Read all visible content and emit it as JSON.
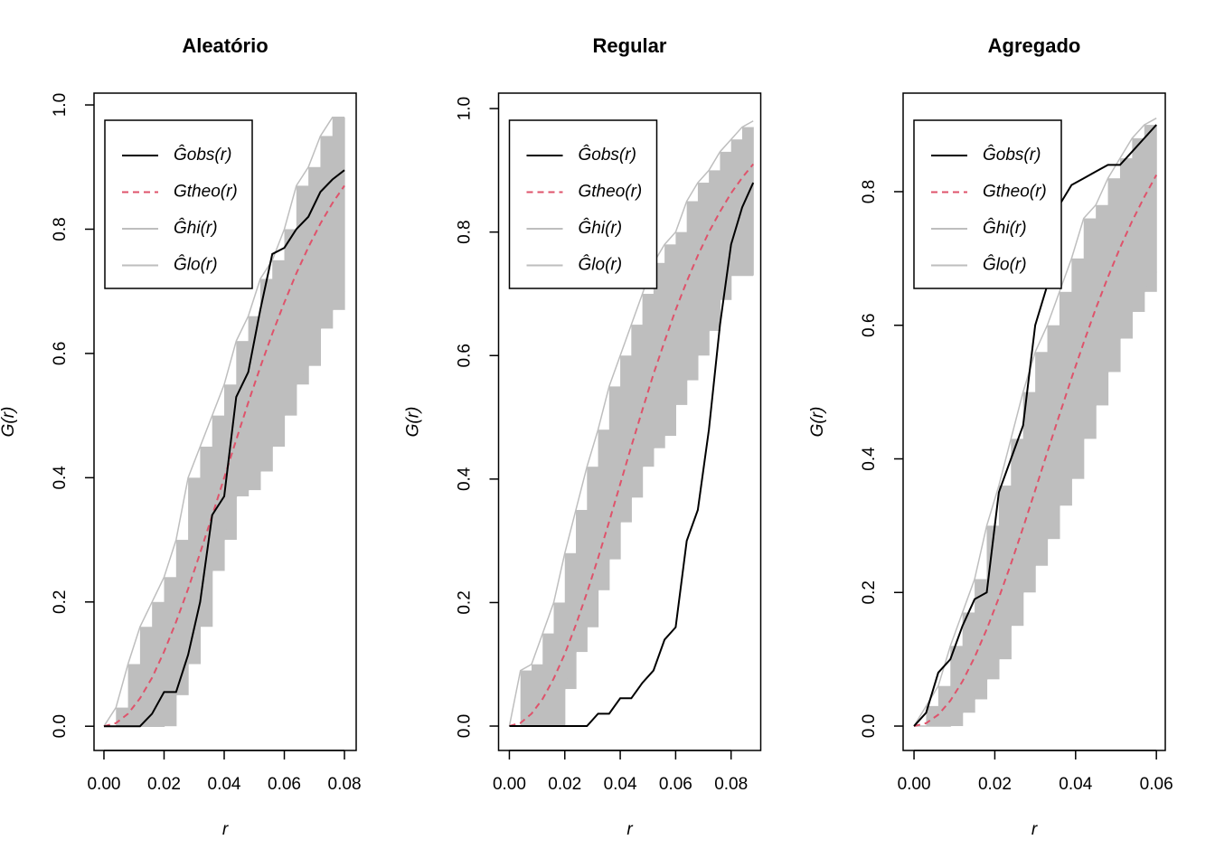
{
  "chart_data": [
    {
      "type": "line",
      "title": "Aleatório",
      "xlabel": "r",
      "ylabel": "G(r)",
      "x": [
        0,
        0.004,
        0.008,
        0.012,
        0.016,
        0.02,
        0.024,
        0.028,
        0.032,
        0.036,
        0.04,
        0.044,
        0.048,
        0.052,
        0.056,
        0.06,
        0.064,
        0.068,
        0.072,
        0.076,
        0.08
      ],
      "series": [
        {
          "name": "Ĝobs(r)",
          "color": "#000000",
          "style": "solid",
          "values": [
            0,
            0,
            0,
            0,
            0.02,
            0.055,
            0.055,
            0.115,
            0.2,
            0.34,
            0.37,
            0.53,
            0.57,
            0.67,
            0.76,
            0.77,
            0.8,
            0.82,
            0.86,
            0.88,
            0.895
          ]
        },
        {
          "name": "Gtheo(r)",
          "color": "#df536b",
          "style": "dashed",
          "values": [
            0,
            0.005,
            0.02,
            0.045,
            0.078,
            0.12,
            0.168,
            0.221,
            0.279,
            0.339,
            0.4,
            0.461,
            0.521,
            0.578,
            0.632,
            0.682,
            0.729,
            0.771,
            0.809,
            0.842,
            0.87
          ]
        },
        {
          "name": "Ĝhi(r)",
          "color": "#bebebe",
          "style": "solid",
          "values": [
            0,
            0.03,
            0.1,
            0.16,
            0.2,
            0.24,
            0.3,
            0.4,
            0.45,
            0.5,
            0.55,
            0.62,
            0.66,
            0.72,
            0.75,
            0.8,
            0.87,
            0.9,
            0.95,
            0.98,
            0.98
          ]
        },
        {
          "name": "Ĝlo(r)",
          "color": "#bebebe",
          "style": "solid",
          "values": [
            0,
            0,
            0,
            0,
            0,
            0,
            0.05,
            0.1,
            0.16,
            0.25,
            0.3,
            0.37,
            0.38,
            0.41,
            0.45,
            0.5,
            0.55,
            0.58,
            0.64,
            0.67,
            0.7
          ]
        }
      ],
      "xlim": [
        -0.0033,
        0.0839
      ],
      "ylim": [
        -0.039,
        1.019
      ],
      "xticks": [
        {
          "value": 0,
          "label": "0.00"
        },
        {
          "value": 0.02,
          "label": "0.02"
        },
        {
          "value": 0.04,
          "label": "0.04"
        },
        {
          "value": 0.06,
          "label": "0.06"
        },
        {
          "value": 0.08,
          "label": "0.08"
        }
      ],
      "yticks": [
        {
          "value": 0,
          "label": "0.0"
        },
        {
          "value": 0.2,
          "label": "0.2"
        },
        {
          "value": 0.4,
          "label": "0.4"
        },
        {
          "value": 0.6,
          "label": "0.6"
        },
        {
          "value": 0.8,
          "label": "0.8"
        },
        {
          "value": 1,
          "label": "1.0"
        }
      ],
      "legend": "top-left"
    },
    {
      "type": "line",
      "title": "Regular",
      "xlabel": "r",
      "ylabel": "G(r)",
      "x": [
        0,
        0.004,
        0.008,
        0.012,
        0.016,
        0.02,
        0.024,
        0.028,
        0.032,
        0.036,
        0.04,
        0.044,
        0.048,
        0.052,
        0.056,
        0.06,
        0.064,
        0.068,
        0.072,
        0.076,
        0.08,
        0.084,
        0.088
      ],
      "series": [
        {
          "name": "Ĝobs(r)",
          "color": "#000000",
          "style": "solid",
          "values": [
            0,
            0,
            0,
            0,
            0,
            0,
            0,
            0,
            0.02,
            0.02,
            0.045,
            0.045,
            0.07,
            0.09,
            0.14,
            0.16,
            0.3,
            0.35,
            0.48,
            0.65,
            0.78,
            0.84,
            0.88
          ]
        },
        {
          "name": "Gtheo(r)",
          "color": "#df536b",
          "style": "dashed",
          "values": [
            0,
            0.005,
            0.02,
            0.044,
            0.077,
            0.117,
            0.164,
            0.216,
            0.272,
            0.331,
            0.392,
            0.453,
            0.512,
            0.57,
            0.623,
            0.674,
            0.72,
            0.762,
            0.8,
            0.833,
            0.863,
            0.888,
            0.91
          ]
        },
        {
          "name": "Ĝhi(r)",
          "color": "#bebebe",
          "style": "solid",
          "values": [
            0,
            0.09,
            0.1,
            0.15,
            0.2,
            0.28,
            0.35,
            0.42,
            0.48,
            0.55,
            0.6,
            0.65,
            0.7,
            0.75,
            0.78,
            0.8,
            0.85,
            0.88,
            0.9,
            0.93,
            0.95,
            0.97,
            0.98
          ]
        },
        {
          "name": "Ĝlo(r)",
          "color": "#bebebe",
          "style": "solid",
          "values": [
            0,
            0,
            0,
            0,
            0,
            0.06,
            0.12,
            0.16,
            0.22,
            0.27,
            0.33,
            0.37,
            0.42,
            0.45,
            0.47,
            0.52,
            0.56,
            0.6,
            0.64,
            0.69,
            0.73,
            0.73,
            0.73
          ]
        }
      ],
      "xlim": [
        -0.0039,
        0.0907
      ],
      "ylim": [
        -0.0395,
        1.025
      ],
      "xticks": [
        {
          "value": 0,
          "label": "0.00"
        },
        {
          "value": 0.02,
          "label": "0.02"
        },
        {
          "value": 0.04,
          "label": "0.04"
        },
        {
          "value": 0.06,
          "label": "0.06"
        },
        {
          "value": 0.08,
          "label": "0.08"
        }
      ],
      "yticks": [
        {
          "value": 0,
          "label": "0.0"
        },
        {
          "value": 0.2,
          "label": "0.2"
        },
        {
          "value": 0.4,
          "label": "0.4"
        },
        {
          "value": 0.6,
          "label": "0.6"
        },
        {
          "value": 0.8,
          "label": "0.8"
        },
        {
          "value": 1,
          "label": "1.0"
        }
      ],
      "legend": "top-left"
    },
    {
      "type": "line",
      "title": "Agregado",
      "xlabel": "r",
      "ylabel": "G(r)",
      "x": [
        0,
        0.003,
        0.006,
        0.009,
        0.012,
        0.015,
        0.018,
        0.021,
        0.024,
        0.027,
        0.03,
        0.033,
        0.036,
        0.039,
        0.042,
        0.045,
        0.048,
        0.051,
        0.054,
        0.057,
        0.06
      ],
      "series": [
        {
          "name": "Ĝobs(r)",
          "color": "#000000",
          "style": "solid",
          "values": [
            0,
            0.02,
            0.08,
            0.1,
            0.15,
            0.19,
            0.2,
            0.35,
            0.4,
            0.45,
            0.6,
            0.66,
            0.78,
            0.81,
            0.82,
            0.83,
            0.84,
            0.84,
            0.86,
            0.88,
            0.9
          ]
        },
        {
          "name": "Gtheo(r)",
          "color": "#df536b",
          "style": "dashed",
          "values": [
            0,
            0.0043,
            0.017,
            0.038,
            0.067,
            0.103,
            0.145,
            0.192,
            0.243,
            0.297,
            0.353,
            0.41,
            0.466,
            0.521,
            0.574,
            0.625,
            0.672,
            0.716,
            0.756,
            0.792,
            0.825
          ]
        },
        {
          "name": "Ĝhi(r)",
          "color": "#bebebe",
          "style": "solid",
          "values": [
            0,
            0.03,
            0.06,
            0.12,
            0.17,
            0.22,
            0.3,
            0.36,
            0.43,
            0.5,
            0.56,
            0.6,
            0.65,
            0.7,
            0.76,
            0.78,
            0.82,
            0.85,
            0.88,
            0.9,
            0.91
          ]
        },
        {
          "name": "Ĝlo(r)",
          "color": "#bebebe",
          "style": "solid",
          "values": [
            0,
            0,
            0,
            0,
            0.02,
            0.04,
            0.07,
            0.1,
            0.15,
            0.2,
            0.24,
            0.28,
            0.33,
            0.37,
            0.43,
            0.48,
            0.53,
            0.58,
            0.62,
            0.65,
            0.68
          ]
        }
      ],
      "xlim": [
        -0.0027,
        0.0622
      ],
      "ylim": [
        -0.0365,
        0.9475
      ],
      "xticks": [
        {
          "value": 0,
          "label": "0.00"
        },
        {
          "value": 0.02,
          "label": "0.02"
        },
        {
          "value": 0.04,
          "label": "0.04"
        },
        {
          "value": 0.06,
          "label": "0.06"
        }
      ],
      "yticks": [
        {
          "value": 0,
          "label": "0.0"
        },
        {
          "value": 0.2,
          "label": "0.2"
        },
        {
          "value": 0.4,
          "label": "0.4"
        },
        {
          "value": 0.6,
          "label": "0.6"
        },
        {
          "value": 0.8,
          "label": "0.8"
        }
      ],
      "legend": "top-left"
    }
  ]
}
